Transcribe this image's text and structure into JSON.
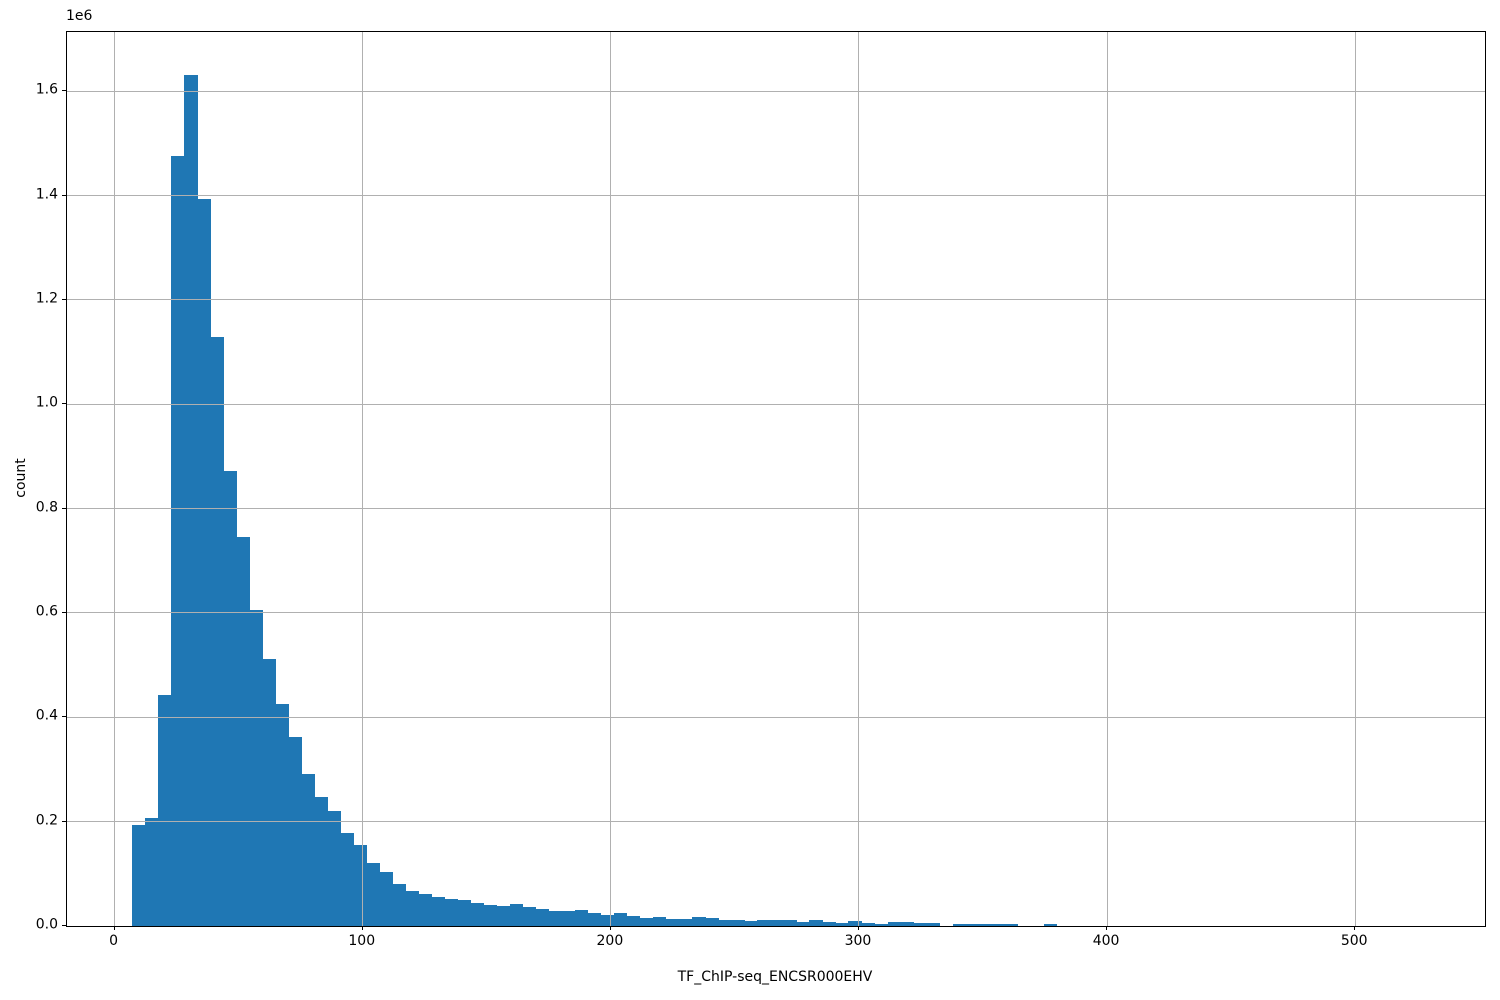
{
  "chart_data": {
    "type": "bar",
    "subtype": "histogram",
    "title": "",
    "xlabel": "TF_ChIP-seq_ENCSR000EHV",
    "ylabel": "count",
    "y_offset_label": "1e6",
    "grid": true,
    "legend": "none",
    "xlim": [
      -19.2,
      552.3
    ],
    "ylim": [
      0,
      1713600
    ],
    "bin_start": 7,
    "bin_width": 5.25,
    "counts": [
      193000,
      208000,
      442000,
      1475000,
      1632000,
      1394000,
      1129000,
      873000,
      746000,
      605000,
      511000,
      425000,
      363000,
      292000,
      247000,
      220000,
      179000,
      156000,
      120000,
      104000,
      80000,
      68000,
      62000,
      56000,
      51000,
      49000,
      45000,
      41000,
      38000,
      42000,
      36000,
      32000,
      29000,
      28000,
      31000,
      24000,
      21000,
      25000,
      19000,
      16000,
      18000,
      13000,
      13000,
      17000,
      15000,
      12000,
      11000,
      10000,
      11000,
      12000,
      11000,
      7000,
      12000,
      8000,
      6000,
      9000,
      5000,
      4000,
      8000,
      8000,
      5000,
      6000,
      0,
      3000,
      3000,
      3000,
      3000,
      3000,
      0,
      0,
      3000
    ],
    "x_ticks": [
      0,
      100,
      200,
      300,
      400,
      500
    ],
    "x_tick_labels": [
      "0",
      "100",
      "200",
      "300",
      "400",
      "500"
    ],
    "y_ticks": [
      0,
      200000,
      400000,
      600000,
      800000,
      1000000,
      1200000,
      1400000,
      1600000
    ],
    "y_tick_labels": [
      "0.0",
      "0.2",
      "0.4",
      "0.6",
      "0.8",
      "1.0",
      "1.2",
      "1.4",
      "1.6"
    ],
    "bar_color": "#1f77b4",
    "grid_color": "#b0b0b0",
    "spine_color": "#000000",
    "grid_above_bars": true
  }
}
